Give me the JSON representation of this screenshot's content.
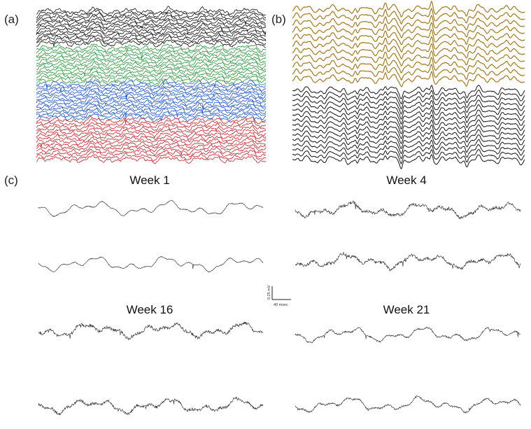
{
  "panel_labels": {
    "a": "(a)",
    "b": "(b)",
    "c": "(c)"
  },
  "scale_bar": {
    "voltage_label": "0.25 mV",
    "time_label": "40 msec"
  },
  "chart_data": [
    {
      "type": "line",
      "panel": "(a)",
      "title": "",
      "xlabel": "",
      "ylabel": "",
      "grid": false,
      "traces_per_group": [
        13,
        13,
        14,
        14
      ],
      "colors": [
        "#111111",
        "#2e9a3e",
        "#1f57d6",
        "#d4242c"
      ]
    },
    {
      "type": "line",
      "panel": "(b)",
      "title": "",
      "xlabel": "",
      "ylabel": "",
      "grid": false,
      "traces_per_group": [
        11,
        15
      ],
      "colors": [
        "#a8791c",
        "#151515"
      ]
    },
    {
      "type": "line",
      "panel": "(c)",
      "title": "",
      "grid": false,
      "subplots": [
        {
          "title": "Week 1",
          "traces": 2,
          "noise_level": "low"
        },
        {
          "title": "Week 4",
          "traces": 2,
          "noise_level": "high"
        },
        {
          "title": "Week 16",
          "traces": 2,
          "noise_level": "high"
        },
        {
          "title": "Week 21",
          "traces": 2,
          "noise_level": "medium"
        }
      ],
      "color": "#222222"
    }
  ]
}
